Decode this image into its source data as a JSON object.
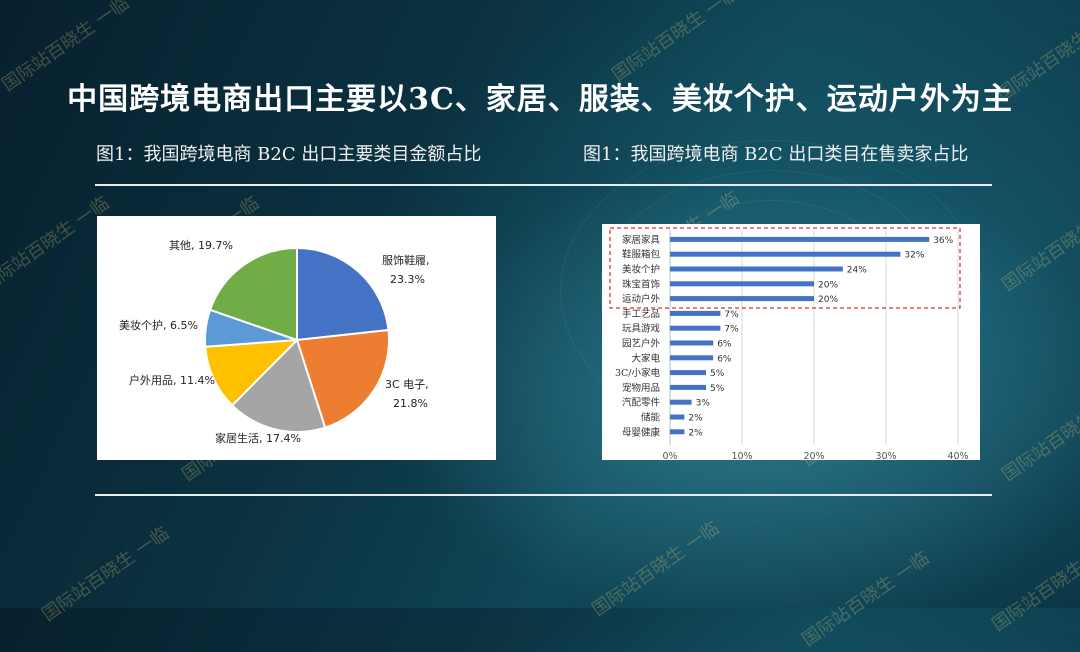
{
  "slide": {
    "title": "中国跨境电商出口主要以3C、家居、服装、美妆个护、运动户外为主",
    "fig1_title": "图1：我国跨境电商 B2C 出口主要类目金额占比",
    "fig2_title": "图1：我国跨境电商 B2C 出口类目在售卖家占比",
    "watermark": "国际站百晓生 一临"
  },
  "chart_data": [
    {
      "type": "pie",
      "slices": [
        {
          "name": "服饰鞋履",
          "value": 23.3,
          "label_line1": "服饰鞋履,",
          "label_line2": "23.3%",
          "color": "#4472C4"
        },
        {
          "name": "3C 电子",
          "value": 21.8,
          "label_line1": "3C 电子,",
          "label_line2": "21.8%",
          "color": "#ED7D31"
        },
        {
          "name": "家居生活",
          "value": 17.4,
          "label_line1": "家居生活, 17.4%",
          "color": "#A5A5A5"
        },
        {
          "name": "户外用品",
          "value": 11.4,
          "label_line1": "户外用品, 11.4%",
          "color": "#FFC000"
        },
        {
          "name": "美妆个护",
          "value": 6.5,
          "label_line1": "美妆个护, 6.5%",
          "color": "#5B9BD5"
        },
        {
          "name": "其他",
          "value": 19.7,
          "label_line1": "其他, 19.7%",
          "color": "#70AD47"
        }
      ]
    },
    {
      "type": "bar",
      "orientation": "horizontal",
      "categories": [
        "家居家具",
        "鞋服箱包",
        "美妆个护",
        "珠宝首饰",
        "运动户外",
        "手工艺品",
        "玩具游戏",
        "园艺户外",
        "大家电",
        "3C/小家电",
        "宠物用品",
        "汽配零件",
        "储能",
        "母婴健康"
      ],
      "values": [
        36,
        32,
        24,
        20,
        20,
        7,
        7,
        6,
        6,
        5,
        5,
        3,
        2,
        2
      ],
      "value_labels": [
        "36%",
        "32%",
        "24%",
        "20%",
        "20%",
        "7%",
        "7%",
        "6%",
        "6%",
        "5%",
        "5%",
        "3%",
        "2%",
        "2%"
      ],
      "xlim": [
        0,
        40
      ],
      "xticks": [
        "0%",
        "10%",
        "20%",
        "30%",
        "40%"
      ],
      "highlighted_top": 5,
      "bar_color": "#4472C4",
      "highlight_color": "#C00000",
      "grid": true
    }
  ]
}
